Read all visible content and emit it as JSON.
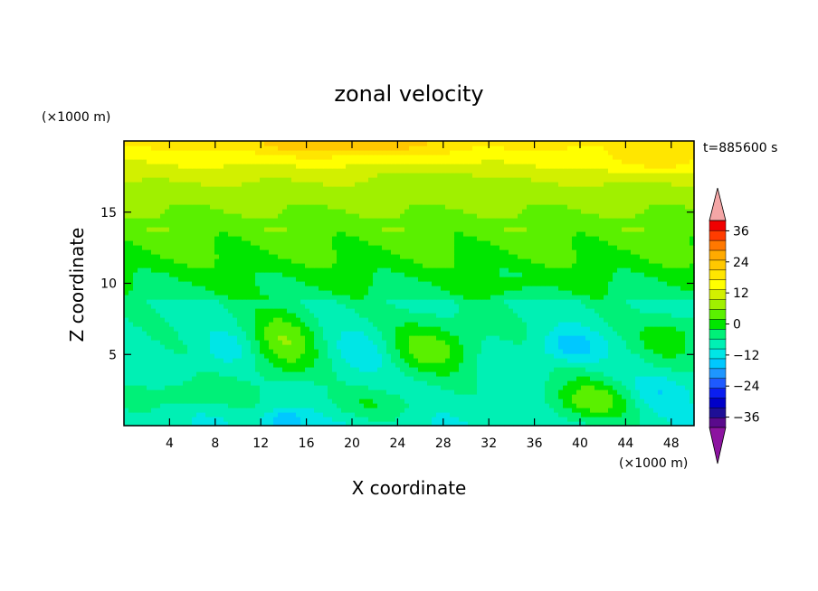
{
  "chart_data": {
    "type": "heatmap",
    "title": "zonal velocity",
    "xlabel": "X coordinate",
    "ylabel": "Z coordinate",
    "x_unit": "(×1000 m)",
    "y_unit": "(×1000 m)",
    "time_label": "t=885600 s",
    "xlim": [
      0,
      50
    ],
    "ylim": [
      0,
      20
    ],
    "x_ticks": [
      4,
      8,
      12,
      16,
      20,
      24,
      28,
      32,
      36,
      40,
      44,
      48
    ],
    "y_ticks": [
      5,
      10,
      15
    ],
    "colorbar": {
      "levels": [
        -40,
        -36,
        -32,
        -28,
        -24,
        -20,
        -16,
        -12,
        -8,
        -4,
        0,
        4,
        8,
        12,
        16,
        20,
        24,
        28,
        32,
        36,
        40
      ],
      "tick_labels": [
        36,
        24,
        12,
        0,
        -12,
        -24,
        -36
      ],
      "colors": [
        "#5a0a8c",
        "#1e0f96",
        "#0000c8",
        "#0a1ef0",
        "#1e5aff",
        "#1e96ff",
        "#00c8ff",
        "#00e6e6",
        "#00f0b4",
        "#00f078",
        "#00e600",
        "#5af000",
        "#a0f000",
        "#d2f000",
        "#ffff00",
        "#ffe600",
        "#ffc800",
        "#ffaa00",
        "#ff7800",
        "#ff3c00",
        "#f00000"
      ],
      "over_color": "#f4a6a6",
      "under_color": "#8c14a0"
    },
    "field_description": "Upper layer (z>16) positive ~8-20 with max ~20 near z=19.5; middle (10-16) ~0-8; lower (<9) mixed ~-4 to -12 with positive blobs and a minimum ~-14 near x=39, z=5.5"
  }
}
